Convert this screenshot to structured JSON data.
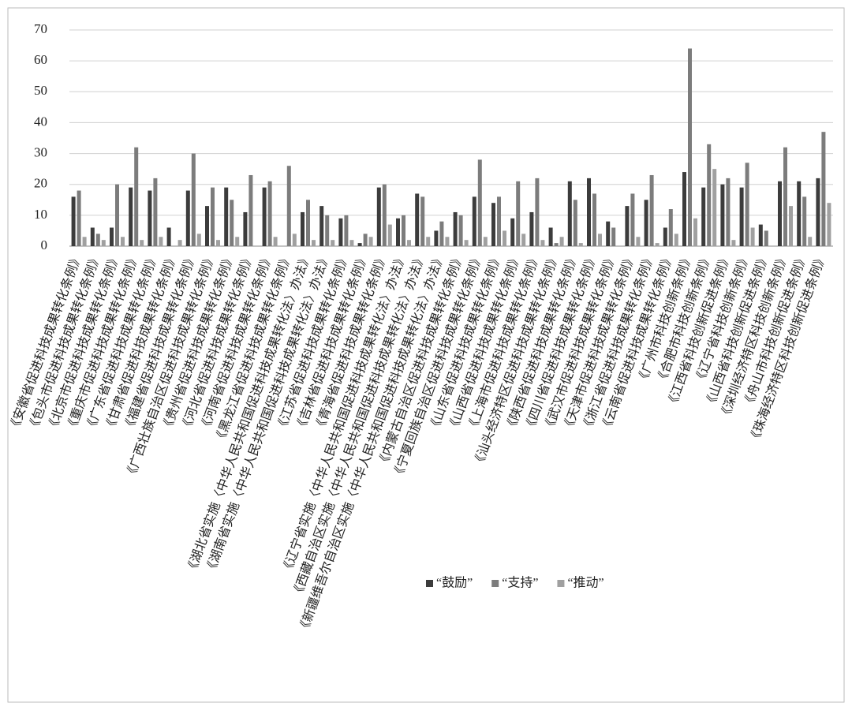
{
  "chart_data": {
    "type": "bar",
    "categories": [
      "《安徽省促进科技成果转化条例》",
      "《包头市促进科技成果转化条例》",
      "《北京市促进科技成果转化条例》",
      "《重庆市促进科技成果转化条例》",
      "《广东省促进科技成果转化条例》",
      "《甘肃省促进科技成果转化条例》",
      "《福建省促进科技成果转化条例》",
      "《广西壮族自治区促进科技成果转化条例》",
      "《贵州省促进科技成果转化条例》",
      "《河北省促进科技成果转化条例》",
      "《河南省促进科技成果转化条例》",
      "《黑龙江省促进科技成果转化条例》",
      "《湖北省实施〈中华人民共和国促进科技成果转化法〉办法》",
      "《湖南省实施〈中华人民共和国促进科技成果转化法〉办法》",
      "《江苏省促进科技成果转化条例》",
      "《吉林省促进科技成果转化条例》",
      "《青海省促进科技成果转化条例》",
      "《辽宁省实施〈中华人民共和国促进科技成果转化法〉办法》",
      "《西藏自治区实施〈中华人民共和国促进科技成果转化法〉办法》",
      "《新疆维吾尔自治区实施〈中华人民共和国促进科技成果转化法〉办法》",
      "《内蒙古自治区促进科技成果转化条例》",
      "《宁夏回族自治区促进科技成果转化条例》",
      "《山东省促进科技成果转化条例》",
      "《山西省促进科技成果转化条例》",
      "《上海市促进科技成果转化条例》",
      "《汕头经济特区促进科技成果转化条例》",
      "《陕西省促进科技成果转化条例》",
      "《四川省促进科技成果转化条例》",
      "《武汉市促进科技成果转化条例》",
      "《天津市促进科技成果转化条例》",
      "《浙江省促进科技成果转化条例》",
      "《云南省促进科技成果转化条例》",
      "《广州市科技创新条例》",
      "《合肥市科技创新条例》",
      "《江西省科技创新促进条例》",
      "《辽宁省科技创新条例》",
      "《山西省科技创新促进条例》",
      "《深圳经济特区科技创新条例》",
      "《舟山市科技创新促进条例》",
      "《珠海经济特区科技创新促进条例》"
    ],
    "series": [
      {
        "name": "“鼓励”",
        "color": "#3c3c3c",
        "values": [
          16,
          6,
          6,
          19,
          18,
          6,
          18,
          13,
          19,
          11,
          19,
          0,
          11,
          13,
          9,
          1,
          19,
          9,
          17,
          5,
          11,
          16,
          14,
          9,
          11,
          6,
          21,
          22,
          8,
          13,
          15,
          6,
          24,
          19,
          20,
          19,
          7,
          21,
          21,
          22
        ]
      },
      {
        "name": "“支持”",
        "color": "#7c7c7c",
        "values": [
          18,
          4,
          20,
          32,
          22,
          0,
          30,
          19,
          15,
          23,
          21,
          26,
          15,
          10,
          10,
          4,
          20,
          10,
          16,
          8,
          10,
          28,
          16,
          21,
          22,
          1,
          15,
          17,
          6,
          17,
          23,
          12,
          64,
          33,
          22,
          27,
          5,
          32,
          16,
          37
        ]
      },
      {
        "name": "“推动”",
        "color": "#a0a0a0",
        "values": [
          3,
          2,
          3,
          2,
          3,
          2,
          4,
          2,
          3,
          0,
          3,
          4,
          2,
          2,
          2,
          3,
          7,
          2,
          3,
          3,
          2,
          3,
          5,
          4,
          2,
          3,
          1,
          4,
          0,
          3,
          1,
          4,
          9,
          25,
          2,
          6,
          0,
          13,
          3,
          14
        ]
      }
    ],
    "ylim": [
      0,
      70
    ],
    "yticks": [
      0,
      10,
      20,
      30,
      40,
      50,
      60,
      70
    ],
    "grid": true
  }
}
